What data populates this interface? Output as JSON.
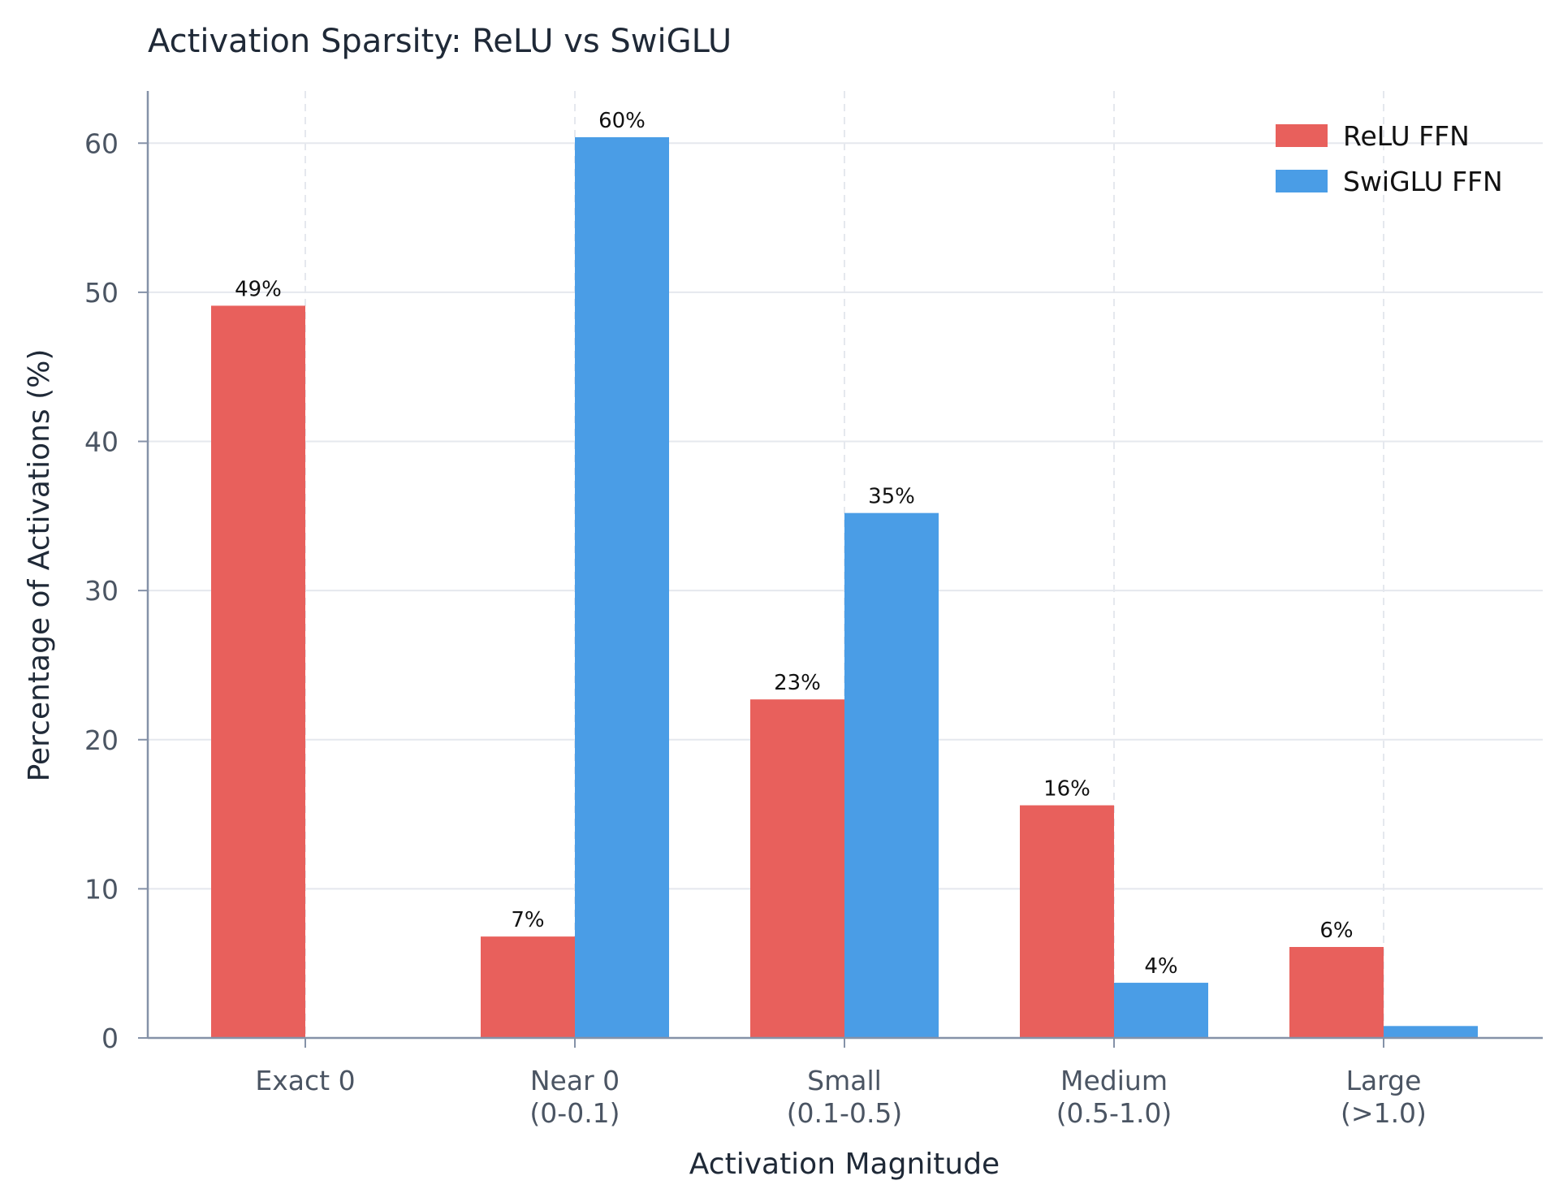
{
  "chart_data": {
    "type": "bar",
    "title": "Activation Sparsity: ReLU vs SwiGLU",
    "xlabel": "Activation Magnitude",
    "ylabel": "Percentage of Activations (%)",
    "categories": [
      [
        "Exact 0"
      ],
      [
        "Near 0",
        "(0-0.1)"
      ],
      [
        "Small",
        "(0.1-0.5)"
      ],
      [
        "Medium",
        "(0.5-1.0)"
      ],
      [
        "Large",
        "(>1.0)"
      ]
    ],
    "series": [
      {
        "name": "ReLU FFN",
        "color": "#e8605c",
        "values": [
          49.1,
          6.8,
          22.7,
          15.6,
          6.1
        ],
        "labels": [
          "49%",
          "7%",
          "23%",
          "16%",
          "6%"
        ]
      },
      {
        "name": "SwiGLU FFN",
        "color": "#4a9de6",
        "values": [
          0,
          60.4,
          35.2,
          3.7,
          0.8
        ],
        "labels": [
          "",
          "60%",
          "35%",
          "4%",
          ""
        ]
      }
    ],
    "ylim": [
      0,
      63.5
    ],
    "yticks": [
      0,
      10,
      20,
      30,
      40,
      50,
      60
    ],
    "grid": true,
    "legend_position": "top-right"
  }
}
